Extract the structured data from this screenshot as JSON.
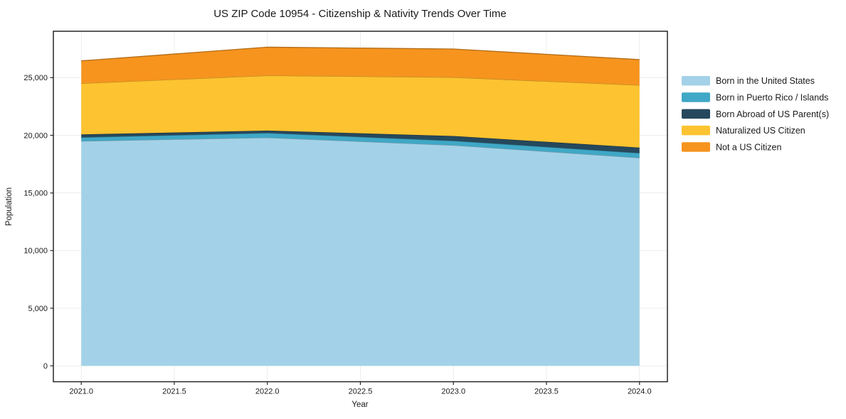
{
  "figure": {
    "title": "US ZIP Code 10954 - Citizenship & Nativity Trends Over Time",
    "xlabel": "Year",
    "ylabel": "Population"
  },
  "chart_data": {
    "type": "area",
    "stacked": true,
    "title": "US ZIP Code 10954 - Citizenship & Nativity Trends Over Time",
    "xlabel": "Year",
    "ylabel": "Population",
    "grid": true,
    "legend_position": "right-outside",
    "x": [
      2021,
      2022,
      2023,
      2024
    ],
    "xlim": [
      2020.85,
      2024.15
    ],
    "ylim": [
      -1380,
      29030
    ],
    "x_ticks": [
      2021.0,
      2021.5,
      2022.0,
      2022.5,
      2023.0,
      2023.5,
      2024.0
    ],
    "x_tick_labels": [
      "2021.0",
      "2021.5",
      "2022.0",
      "2022.5",
      "2023.0",
      "2023.5",
      "2024.0"
    ],
    "y_ticks": [
      0,
      5000,
      10000,
      15000,
      20000,
      25000
    ],
    "y_tick_labels": [
      "0",
      "5,000",
      "10,000",
      "15,000",
      "20,000",
      "25,000"
    ],
    "series": [
      {
        "name": "Born in the United States",
        "color": "#A3D2E8",
        "values": [
          19500,
          19800,
          19140,
          18050
        ]
      },
      {
        "name": "Born in Puerto Rico / Islands",
        "color": "#3FA8C6",
        "values": [
          320,
          400,
          385,
          410
        ]
      },
      {
        "name": "Born Abroad of US Parent(s)",
        "color": "#26485C",
        "values": [
          260,
          210,
          415,
          475
        ]
      },
      {
        "name": "Naturalized US Citizen",
        "color": "#FDC330",
        "values": [
          4430,
          4780,
          5090,
          5420
        ]
      },
      {
        "name": "Not a US Citizen",
        "color": "#F6941E",
        "values": [
          1950,
          2460,
          2460,
          2215
        ]
      }
    ],
    "stacked_totals": [
      26460,
      27650,
      27490,
      26570
    ]
  },
  "colors": {
    "spine": "#262626",
    "grid": "#ececec",
    "text": "#1a1a1a",
    "background": "#ffffff"
  }
}
